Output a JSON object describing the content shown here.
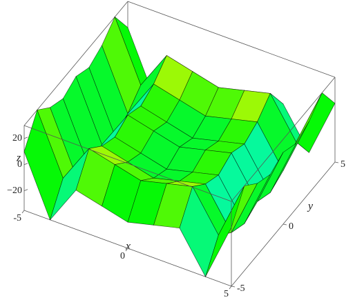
{
  "chart_data": {
    "type": "surface",
    "x": [
      -5,
      -3.75,
      -2.5,
      -1.25,
      0,
      1.25,
      2.5,
      3.75,
      5
    ],
    "y": [
      -5,
      -3.75,
      -2.5,
      -1.25,
      0,
      1.25,
      2.5,
      3.75,
      5
    ],
    "z": [
      [
        10,
        30,
        20,
        15,
        20,
        15,
        20,
        30,
        10
      ],
      [
        -35,
        -15,
        -25,
        -30,
        -25,
        -30,
        -25,
        -15,
        -35
      ],
      [
        -5,
        15,
        5,
        0,
        5,
        0,
        5,
        15,
        -5
      ],
      [
        -10,
        10,
        0,
        -5,
        0,
        -5,
        0,
        10,
        -10
      ],
      [
        -15,
        5,
        -5,
        -10,
        -5,
        -10,
        -5,
        5,
        -15
      ],
      [
        -10,
        10,
        0,
        -5,
        0,
        -5,
        0,
        10,
        -10
      ],
      [
        -5,
        15,
        5,
        0,
        5,
        0,
        5,
        15,
        -5
      ],
      [
        -35,
        -15,
        -25,
        -30,
        -25,
        -30,
        -25,
        -15,
        -35
      ],
      [
        10,
        30,
        20,
        15,
        20,
        15,
        20,
        30,
        10
      ]
    ],
    "xlim": [
      -5,
      5
    ],
    "ylim": [
      -5,
      5
    ],
    "zlim": [
      -35,
      30
    ],
    "xticks": [
      -5,
      0,
      5
    ],
    "yticks": [
      -5,
      0,
      5
    ],
    "zticks": [
      {
        "value": -20,
        "label": "−20"
      },
      0,
      20
    ],
    "xlabel": "x",
    "ylabel": "y",
    "zlabel": "z",
    "mesh": true
  }
}
